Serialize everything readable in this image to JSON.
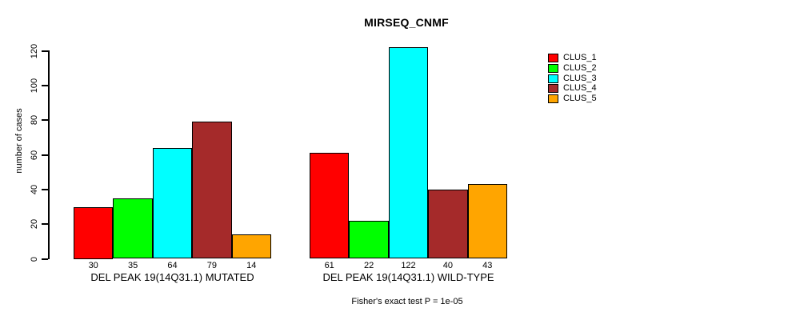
{
  "chart_data": {
    "type": "bar",
    "title": "MIRSEQ_CNMF",
    "ylabel": "number of cases",
    "xlabel": "Fisher's exact test P = 1e-05",
    "ylim": [
      0,
      120
    ],
    "yticks": [
      0,
      20,
      40,
      60,
      80,
      100,
      120
    ],
    "grid": false,
    "legend_position": "right",
    "bar_value_labels_shown": true,
    "categories": [
      "DEL PEAK 19(14Q31.1) MUTATED",
      "DEL PEAK 19(14Q31.1) WILD-TYPE"
    ],
    "series": [
      {
        "name": "CLUS_1",
        "color": "#FF0000",
        "values": [
          30,
          61
        ]
      },
      {
        "name": "CLUS_2",
        "color": "#00FF00",
        "values": [
          35,
          22
        ]
      },
      {
        "name": "CLUS_3",
        "color": "#00FFFF",
        "values": [
          64,
          122
        ]
      },
      {
        "name": "CLUS_4",
        "color": "#A52A2A",
        "values": [
          79,
          40
        ]
      },
      {
        "name": "CLUS_5",
        "color": "#FFA500",
        "values": [
          14,
          43
        ]
      }
    ],
    "colors": {
      "background": "#FFFFFF",
      "axis": "#000000",
      "text": "#000000",
      "bar_border": "#000000"
    }
  }
}
